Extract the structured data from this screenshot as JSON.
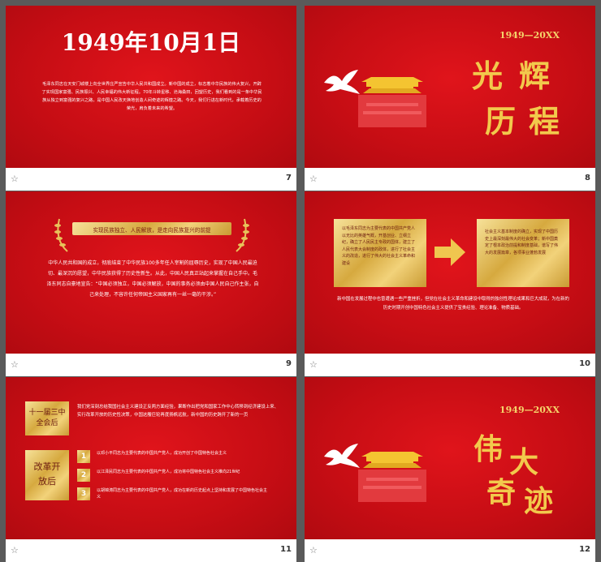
{
  "slides": [
    {
      "number": "7",
      "title": "1949年10月1日",
      "body": "毛泽东同志在天安门城楼上向全世界庄严宣告中华人民共和国成立。新中国的成立，标志着中华民族的伟大复兴，开辟了实现国家富强、民族振兴、人民幸福的伟大新征程。70年斗转星移、沧海桑田，回望历史，我们看到的是一条中华民族从独立到富强的复兴之路，是中国人民改天换地创造人间奇迹的辉煌之路。今天，我们行进在新时代，承载着历史的荣光，肩负着未来的希望。"
    },
    {
      "number": "8",
      "years": "1949—20XX",
      "heading": [
        "光",
        "辉",
        "历",
        "程"
      ]
    },
    {
      "number": "9",
      "banner": "实现民族独立、人民解放，是走向民族复兴的前提",
      "body": "中华人民共和国的成立，彻底结束了中华民族100多年任人宰割的屈辱历史，实现了中国人民最迫切、最深沉的愿望，中华民族获得了历史性新生。从此，中国人民真正站起来掌握在自己手中。毛泽东同志自豪地宣告：“中国必须独立，中国必须解放，中国的事务必须由中国人民自己作主张，自己来处理，不容许任何帝国主义国家再有一丝一毫的干涉。”"
    },
    {
      "number": "10",
      "box_left": "以毛泽东同志为主要代表的中国共产党人以无比的英雄气概，开基创业、立纲立纪，确立了人民民主专政的国体，建立了人民代表大会制度的政体，进行了社会主义的改造，进行了伟大的社会主义革命和建设",
      "box_right": "社会主义基本制度的确立，实现了中国历史上最深刻最伟大的社会变革；新中国奠定了根本政治前提和制度基础，谱写了伟大的发展篇章，各项事业蓬勃发展",
      "body": "新中国在发展过程中也曾遭遇一些严重挫折，但党在社会主义革命和建设中取得的独创性理论成果和巨大成就，为在新的历史时期开创中国特色社会主义提供了宝贵经验、理论准备、物质基础。"
    },
    {
      "number": "11",
      "label_top": "十一届三中全会后",
      "label_bottom": "改革开放后",
      "body": "我们党深刻总结我国社会主义建设正反两方面经验，果断作出把党和国家工作中心转移到经济建设上来、实行改革开放的历史性决策，中国这艘巨轮再度扬帆远航，新中国的历史跨开了新的一页",
      "items": [
        {
          "n": "1",
          "text": "以邓小平同志为主要代表的中国共产党人，成功开创了中国特色社会主义"
        },
        {
          "n": "2",
          "text": "以江泽民同志为主要代表的中国共产党人，成功将中国特色社会主义推向21世纪"
        },
        {
          "n": "3",
          "text": "以胡锦涛同志为主要代表的中国共产党人，成功在新的历史起点上坚持和发展了中国特色社会主义"
        }
      ]
    },
    {
      "number": "12",
      "years": "1949—20XX",
      "heading": [
        "伟",
        "大",
        "奇",
        "迹"
      ]
    }
  ],
  "colors": {
    "red": "#c60d14",
    "gold": "#e8c25a",
    "yellow": "#f5d36a"
  },
  "icons": [
    "star-icon",
    "dove-icon",
    "tiananmen-icon",
    "laurel-icon",
    "arrow-right-icon"
  ]
}
